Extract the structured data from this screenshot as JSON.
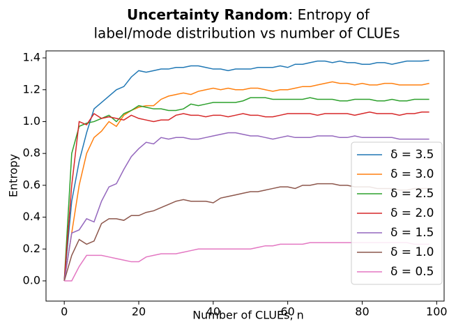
{
  "chart_data": {
    "type": "line",
    "title_bold": "Uncertainty Random",
    "title_rest": ": Entropy of",
    "title_line2": "label/mode distribution vs number of CLUEs",
    "xlabel": "Number of CLUEs, n",
    "ylabel": "Entropy",
    "xlim": [
      -4.9,
      102
    ],
    "ylim": [
      -0.127,
      1.444
    ],
    "xticks": [
      0,
      20,
      40,
      60,
      80,
      100
    ],
    "yticks": [
      {
        "value": 0,
        "label": "0.0"
      },
      0.2,
      0.4,
      0.6,
      0.8,
      {
        "value": 1,
        "label": "1.0"
      },
      1.2,
      1.4
    ],
    "grid": false,
    "legend": "lower right",
    "x": [
      0,
      2,
      4,
      6,
      8,
      10,
      12,
      14,
      16,
      18,
      20,
      22,
      24,
      26,
      28,
      30,
      32,
      34,
      36,
      38,
      40,
      42,
      44,
      46,
      48,
      50,
      52,
      54,
      56,
      58,
      60,
      62,
      64,
      66,
      68,
      70,
      72,
      74,
      76,
      78,
      80,
      82,
      84,
      86,
      88,
      90,
      92,
      94,
      96,
      98
    ],
    "series": [
      {
        "name": "δ = 3.5",
        "color": "#1f77b4",
        "values": [
          0,
          0.5,
          0.75,
          0.93,
          1.08,
          1.12,
          1.16,
          1.2,
          1.22,
          1.28,
          1.32,
          1.31,
          1.32,
          1.33,
          1.33,
          1.34,
          1.34,
          1.35,
          1.35,
          1.34,
          1.33,
          1.33,
          1.32,
          1.33,
          1.33,
          1.33,
          1.34,
          1.34,
          1.34,
          1.35,
          1.34,
          1.36,
          1.36,
          1.37,
          1.38,
          1.38,
          1.37,
          1.38,
          1.37,
          1.37,
          1.36,
          1.36,
          1.37,
          1.37,
          1.36,
          1.37,
          1.38,
          1.38,
          1.38,
          1.385
        ]
      },
      {
        "name": "δ = 3.0",
        "color": "#ff7f0e",
        "values": [
          0,
          0.3,
          0.6,
          0.8,
          0.9,
          0.94,
          1.0,
          0.97,
          1.04,
          1.07,
          1.09,
          1.1,
          1.1,
          1.14,
          1.16,
          1.17,
          1.18,
          1.17,
          1.19,
          1.2,
          1.21,
          1.2,
          1.21,
          1.2,
          1.2,
          1.21,
          1.21,
          1.2,
          1.19,
          1.2,
          1.2,
          1.21,
          1.22,
          1.22,
          1.23,
          1.24,
          1.25,
          1.24,
          1.24,
          1.23,
          1.24,
          1.23,
          1.23,
          1.24,
          1.24,
          1.23,
          1.23,
          1.23,
          1.23,
          1.24
        ]
      },
      {
        "name": "δ = 2.5",
        "color": "#2ca02c",
        "values": [
          0,
          0.8,
          0.97,
          0.99,
          1.0,
          1.02,
          1.04,
          1.0,
          1.05,
          1.07,
          1.1,
          1.09,
          1.08,
          1.08,
          1.07,
          1.07,
          1.08,
          1.11,
          1.1,
          1.11,
          1.12,
          1.12,
          1.12,
          1.12,
          1.13,
          1.15,
          1.15,
          1.15,
          1.14,
          1.14,
          1.14,
          1.14,
          1.14,
          1.15,
          1.14,
          1.14,
          1.14,
          1.13,
          1.13,
          1.14,
          1.14,
          1.14,
          1.13,
          1.13,
          1.14,
          1.13,
          1.13,
          1.14,
          1.14,
          1.14
        ]
      },
      {
        "name": "δ = 2.0",
        "color": "#d62728",
        "values": [
          0,
          0.6,
          1.0,
          0.98,
          1.05,
          1.02,
          1.03,
          1.02,
          1.01,
          1.04,
          1.02,
          1.01,
          1.0,
          1.01,
          1.01,
          1.04,
          1.05,
          1.04,
          1.04,
          1.03,
          1.04,
          1.04,
          1.03,
          1.04,
          1.05,
          1.04,
          1.04,
          1.03,
          1.03,
          1.04,
          1.05,
          1.05,
          1.05,
          1.05,
          1.04,
          1.05,
          1.05,
          1.05,
          1.05,
          1.04,
          1.05,
          1.06,
          1.05,
          1.05,
          1.05,
          1.04,
          1.05,
          1.05,
          1.06,
          1.06
        ]
      },
      {
        "name": "δ = 1.5",
        "color": "#9467bd",
        "values": [
          0,
          0.3,
          0.32,
          0.39,
          0.37,
          0.5,
          0.59,
          0.61,
          0.7,
          0.78,
          0.83,
          0.87,
          0.86,
          0.9,
          0.89,
          0.9,
          0.9,
          0.89,
          0.89,
          0.9,
          0.91,
          0.92,
          0.93,
          0.93,
          0.92,
          0.91,
          0.91,
          0.9,
          0.89,
          0.9,
          0.91,
          0.9,
          0.9,
          0.9,
          0.91,
          0.91,
          0.91,
          0.9,
          0.9,
          0.91,
          0.9,
          0.9,
          0.9,
          0.9,
          0.9,
          0.89,
          0.89,
          0.89,
          0.89,
          0.89
        ]
      },
      {
        "name": "δ = 1.0",
        "color": "#8c564b",
        "values": [
          0,
          0.16,
          0.26,
          0.23,
          0.25,
          0.36,
          0.39,
          0.39,
          0.38,
          0.41,
          0.41,
          0.43,
          0.44,
          0.46,
          0.48,
          0.5,
          0.51,
          0.5,
          0.5,
          0.5,
          0.49,
          0.52,
          0.53,
          0.54,
          0.55,
          0.56,
          0.56,
          0.57,
          0.58,
          0.59,
          0.59,
          0.58,
          0.6,
          0.6,
          0.61,
          0.61,
          0.61,
          0.6,
          0.6,
          0.59,
          0.59,
          0.59,
          0.58,
          0.58,
          0.58,
          0.57,
          0.57,
          0.58,
          0.58,
          0.58
        ]
      },
      {
        "name": "δ = 0.5",
        "color": "#e377c2",
        "values": [
          0,
          0,
          0.09,
          0.16,
          0.16,
          0.16,
          0.15,
          0.14,
          0.13,
          0.12,
          0.12,
          0.15,
          0.16,
          0.17,
          0.17,
          0.17,
          0.18,
          0.19,
          0.2,
          0.2,
          0.2,
          0.2,
          0.2,
          0.2,
          0.2,
          0.2,
          0.21,
          0.22,
          0.22,
          0.23,
          0.23,
          0.23,
          0.23,
          0.24,
          0.24,
          0.24,
          0.24,
          0.24,
          0.24,
          0.24,
          0.24,
          0.24,
          0.24,
          0.24,
          0.24,
          0.24,
          0.24,
          0.23,
          0.23,
          0.23
        ]
      }
    ]
  }
}
